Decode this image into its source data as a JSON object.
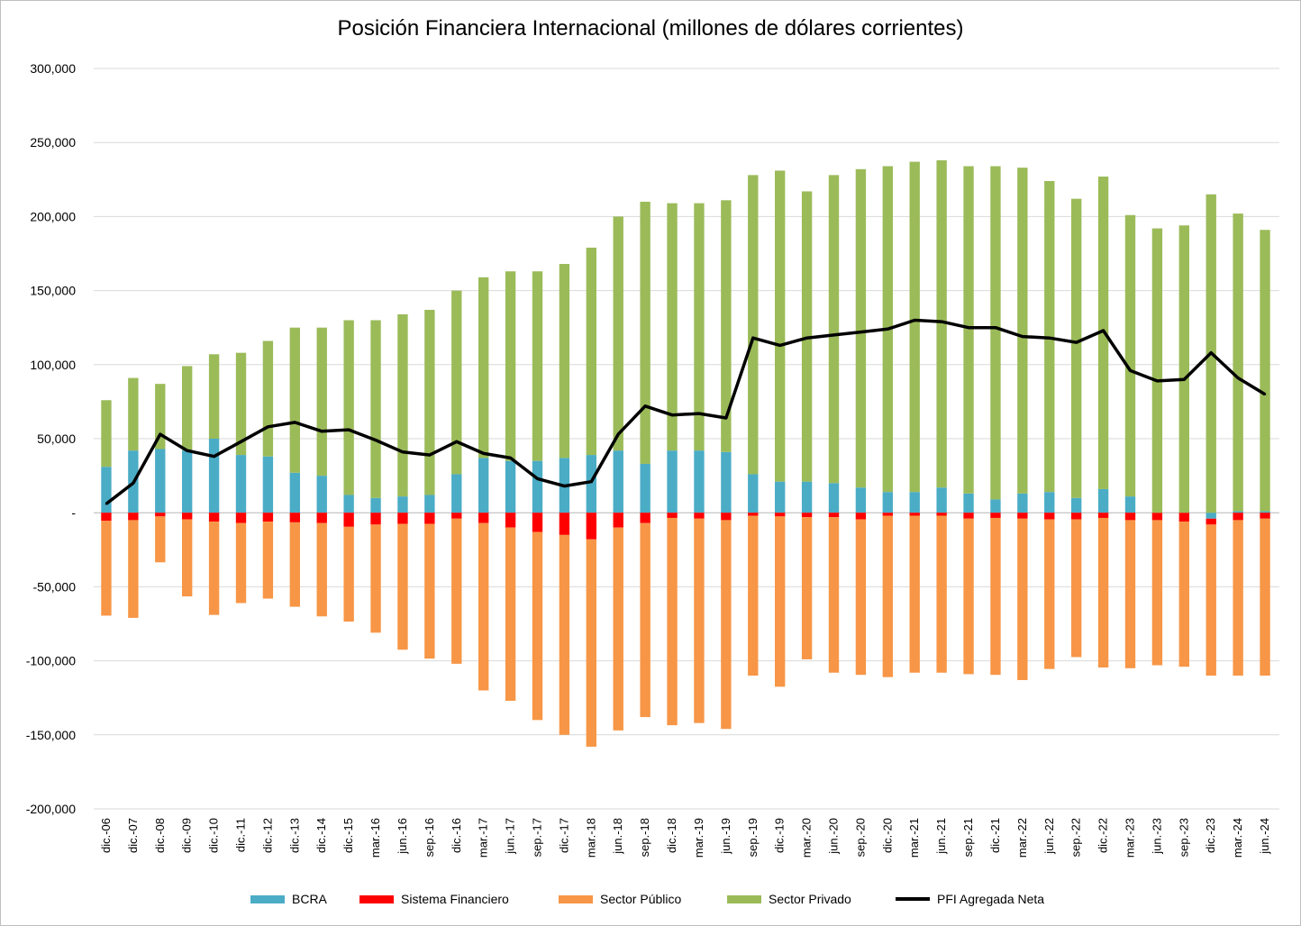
{
  "chart_data": {
    "type": "bar",
    "title": "Posición Financiera Internacional (millones de dólares corrientes)",
    "xlabel": "",
    "ylabel": "",
    "ylim": [
      -200000,
      300000
    ],
    "yticks": [
      300000,
      250000,
      200000,
      150000,
      100000,
      50000,
      0,
      -50000,
      -100000,
      -150000,
      -200000
    ],
    "ytick_labels": [
      "300,000",
      "250,000",
      "200,000",
      "150,000",
      "100,000",
      "50,000",
      "-",
      "-50,000",
      "-100,000",
      "-150,000",
      "-200,000"
    ],
    "grid": true,
    "legend_position": "bottom",
    "stacked": true,
    "categories": [
      "dic.-06",
      "dic.-07",
      "dic.-08",
      "dic.-09",
      "dic.-10",
      "dic.-11",
      "dic.-12",
      "dic.-13",
      "dic.-14",
      "dic.-15",
      "mar.-16",
      "jun.-16",
      "sep.-16",
      "dic.-16",
      "mar.-17",
      "jun.-17",
      "sep.-17",
      "dic.-17",
      "mar.-18",
      "jun.-18",
      "sep.-18",
      "dic.-18",
      "mar.-19",
      "jun.-19",
      "sep.-19",
      "dic.-19",
      "mar.-20",
      "jun.-20",
      "sep.-20",
      "dic.-20",
      "mar.-21",
      "jun.-21",
      "sep.-21",
      "dic.-21",
      "mar.-22",
      "jun.-22",
      "sep.-22",
      "dic.-22",
      "mar.-23",
      "jun.-23",
      "sep.-23",
      "dic.-23",
      "mar.-24",
      "jun.-24"
    ],
    "series": [
      {
        "name": "BCRA",
        "color": "#4bacc6",
        "kind": "bar",
        "values": [
          31000,
          42000,
          43000,
          42000,
          50000,
          39000,
          38000,
          27000,
          25000,
          12000,
          10000,
          11000,
          12000,
          26000,
          37000,
          35000,
          35000,
          37000,
          39000,
          42000,
          33000,
          42000,
          42000,
          41000,
          26000,
          21000,
          21000,
          20000,
          17000,
          14000,
          14000,
          17000,
          13000,
          9000,
          13000,
          14000,
          10000,
          16000,
          11000,
          0,
          0,
          -4000,
          1000,
          1000
        ]
      },
      {
        "name": "Sistema Financiero",
        "color": "#ff0000",
        "kind": "bar",
        "values": [
          -5500,
          -5000,
          -2500,
          -4500,
          -6000,
          -7000,
          -6000,
          -6500,
          -7000,
          -9500,
          -8000,
          -7500,
          -7500,
          -4000,
          -7000,
          -10000,
          -13000,
          -15000,
          -18000,
          -10000,
          -7000,
          -3500,
          -4000,
          -5000,
          -2000,
          -2500,
          -3000,
          -3000,
          -4500,
          -2000,
          -2000,
          -2000,
          -4000,
          -3500,
          -4000,
          -4500,
          -4500,
          -3500,
          -5000,
          -5000,
          -6000,
          -4000,
          -5000,
          -4000
        ]
      },
      {
        "name": "Sector Público",
        "color": "#f79646",
        "kind": "bar",
        "values": [
          -64000,
          -66000,
          -31000,
          -52000,
          -63000,
          -54000,
          -52000,
          -57000,
          -63000,
          -64000,
          -73000,
          -85000,
          -91000,
          -98000,
          -113000,
          -117000,
          -127000,
          -135000,
          -140000,
          -137000,
          -131000,
          -140000,
          -138000,
          -141000,
          -108000,
          -115000,
          -96000,
          -105000,
          -105000,
          -109000,
          -106000,
          -106000,
          -105000,
          -106000,
          -109000,
          -101000,
          -93000,
          -101000,
          -100000,
          -98000,
          -98000,
          -102000,
          -105000,
          -106000
        ]
      },
      {
        "name": "Sector Privado",
        "color": "#9bbb59",
        "kind": "bar",
        "values": [
          45000,
          49000,
          44000,
          57000,
          57000,
          69000,
          78000,
          98000,
          100000,
          118000,
          120000,
          123000,
          125000,
          124000,
          122000,
          128000,
          128000,
          131000,
          140000,
          158000,
          177000,
          167000,
          167000,
          170000,
          202000,
          210000,
          196000,
          208000,
          215000,
          220000,
          223000,
          221000,
          221000,
          225000,
          220000,
          210000,
          202000,
          211000,
          190000,
          192000,
          194000,
          215000,
          201000,
          190000
        ]
      },
      {
        "name": "PFI Agregada Neta",
        "color": "#000000",
        "kind": "line",
        "values": [
          6000,
          20000,
          53000,
          42000,
          38000,
          48000,
          58000,
          61000,
          55000,
          56000,
          49000,
          41000,
          39000,
          48000,
          40000,
          37000,
          23000,
          18000,
          21000,
          53000,
          72000,
          66000,
          67000,
          64000,
          118000,
          113000,
          118000,
          120000,
          122000,
          124000,
          130000,
          129000,
          125000,
          125000,
          119000,
          118000,
          115000,
          123000,
          96000,
          89000,
          90000,
          108000,
          91000,
          80000
        ]
      }
    ]
  }
}
